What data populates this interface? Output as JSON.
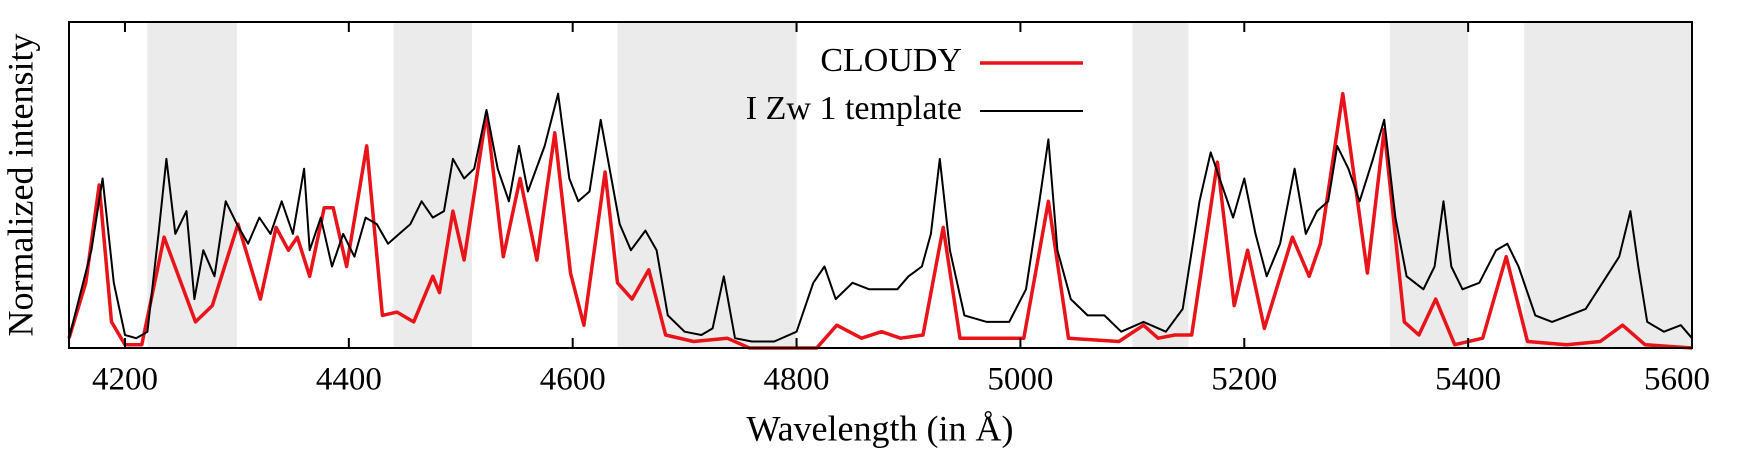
{
  "chart_data": {
    "type": "line",
    "x_label": "Wavelength (in Å)",
    "y_label": "Normalized intensity",
    "xlim": [
      4150,
      5600
    ],
    "ylim": [
      0,
      1
    ],
    "xticks": [
      4200,
      4400,
      4600,
      4800,
      5000,
      5200,
      5400,
      5600
    ],
    "legend": "top",
    "shaded_regions": [
      [
        4220,
        4300
      ],
      [
        4440,
        4510
      ],
      [
        4640,
        4800
      ],
      [
        5100,
        5150
      ],
      [
        5330,
        5400
      ],
      [
        5450,
        5600
      ]
    ],
    "shade_color": "#ebebeb",
    "series": [
      {
        "name": "CLOUDY",
        "color": "#e8141a",
        "x": [
          4150,
          4165,
          4177,
          4188,
          4200,
          4215,
          4235,
          4263,
          4278,
          4301,
          4321,
          4335,
          4346,
          4354,
          4365,
          4378,
          4386,
          4398,
          4416,
          4430,
          4443,
          4458,
          4475,
          4481,
          4493,
          4503,
          4523,
          4538,
          4553,
          4568,
          4584,
          4598,
          4610,
          4629,
          4640,
          4653,
          4668,
          4683,
          4708,
          4738,
          4758,
          4788,
          4818,
          4836,
          4858,
          4876,
          4893,
          4913,
          4931,
          4946,
          4968,
          5003,
          5025,
          5043,
          5088,
          5110,
          5123,
          5138,
          5153,
          5176,
          5191,
          5203,
          5218,
          5243,
          5258,
          5268,
          5288,
          5310,
          5325,
          5343,
          5356,
          5371,
          5388,
          5413,
          5434,
          5453,
          5488,
          5518,
          5538,
          5558,
          5600
        ],
        "values": [
          0.03,
          0.2,
          0.5,
          0.08,
          0.01,
          0.01,
          0.34,
          0.08,
          0.13,
          0.38,
          0.15,
          0.37,
          0.3,
          0.34,
          0.22,
          0.43,
          0.43,
          0.25,
          0.62,
          0.1,
          0.11,
          0.08,
          0.22,
          0.17,
          0.42,
          0.27,
          0.72,
          0.28,
          0.52,
          0.27,
          0.66,
          0.23,
          0.07,
          0.54,
          0.2,
          0.15,
          0.24,
          0.04,
          0.02,
          0.03,
          0.0,
          0.0,
          0.0,
          0.07,
          0.03,
          0.05,
          0.03,
          0.04,
          0.37,
          0.03,
          0.03,
          0.03,
          0.45,
          0.03,
          0.02,
          0.07,
          0.03,
          0.04,
          0.04,
          0.57,
          0.13,
          0.3,
          0.06,
          0.34,
          0.22,
          0.32,
          0.78,
          0.23,
          0.67,
          0.08,
          0.04,
          0.15,
          0.01,
          0.03,
          0.28,
          0.02,
          0.01,
          0.02,
          0.07,
          0.01,
          0.0
        ]
      },
      {
        "name": "I Zw 1 template",
        "color": "#000000",
        "x": [
          4150,
          4170,
          4180,
          4190,
          4200,
          4210,
          4220,
          4230,
          4237,
          4245,
          4255,
          4262,
          4270,
          4280,
          4290,
          4300,
          4310,
          4320,
          4330,
          4340,
          4350,
          4360,
          4365,
          4375,
          4385,
          4395,
          4405,
          4415,
          4425,
          4435,
          4445,
          4455,
          4465,
          4475,
          4485,
          4493,
          4503,
          4512,
          4523,
          4533,
          4543,
          4552,
          4560,
          4575,
          4587,
          4597,
          4605,
          4615,
          4625,
          4633,
          4642,
          4652,
          4665,
          4675,
          4685,
          4700,
          4715,
          4725,
          4735,
          4745,
          4760,
          4780,
          4800,
          4815,
          4825,
          4835,
          4850,
          4865,
          4880,
          4890,
          4900,
          4912,
          4920,
          4928,
          4937,
          4950,
          4970,
          4990,
          5005,
          5017,
          5025,
          5033,
          5045,
          5060,
          5075,
          5090,
          5110,
          5130,
          5145,
          5160,
          5170,
          5180,
          5190,
          5200,
          5210,
          5220,
          5232,
          5245,
          5255,
          5265,
          5275,
          5283,
          5293,
          5303,
          5315,
          5325,
          5335,
          5345,
          5360,
          5370,
          5378,
          5385,
          5395,
          5410,
          5425,
          5435,
          5445,
          5460,
          5475,
          5490,
          5505,
          5520,
          5535,
          5545,
          5552,
          5560,
          5575,
          5590,
          5600
        ],
        "values": [
          0.03,
          0.3,
          0.52,
          0.2,
          0.04,
          0.03,
          0.05,
          0.35,
          0.58,
          0.35,
          0.42,
          0.15,
          0.3,
          0.22,
          0.45,
          0.38,
          0.32,
          0.4,
          0.35,
          0.45,
          0.35,
          0.55,
          0.3,
          0.4,
          0.25,
          0.35,
          0.28,
          0.4,
          0.38,
          0.32,
          0.35,
          0.38,
          0.45,
          0.4,
          0.42,
          0.58,
          0.52,
          0.55,
          0.73,
          0.55,
          0.45,
          0.62,
          0.48,
          0.62,
          0.78,
          0.52,
          0.45,
          0.48,
          0.7,
          0.55,
          0.38,
          0.3,
          0.36,
          0.3,
          0.1,
          0.05,
          0.04,
          0.06,
          0.22,
          0.03,
          0.02,
          0.02,
          0.05,
          0.2,
          0.25,
          0.15,
          0.2,
          0.18,
          0.18,
          0.18,
          0.22,
          0.25,
          0.35,
          0.58,
          0.3,
          0.1,
          0.08,
          0.08,
          0.18,
          0.45,
          0.64,
          0.3,
          0.15,
          0.1,
          0.1,
          0.05,
          0.08,
          0.05,
          0.12,
          0.45,
          0.6,
          0.5,
          0.4,
          0.52,
          0.35,
          0.22,
          0.32,
          0.55,
          0.35,
          0.42,
          0.45,
          0.62,
          0.55,
          0.45,
          0.58,
          0.7,
          0.4,
          0.22,
          0.18,
          0.25,
          0.45,
          0.25,
          0.18,
          0.2,
          0.3,
          0.32,
          0.25,
          0.1,
          0.08,
          0.1,
          0.12,
          0.2,
          0.28,
          0.42,
          0.25,
          0.08,
          0.05,
          0.07,
          0.03
        ]
      }
    ]
  }
}
